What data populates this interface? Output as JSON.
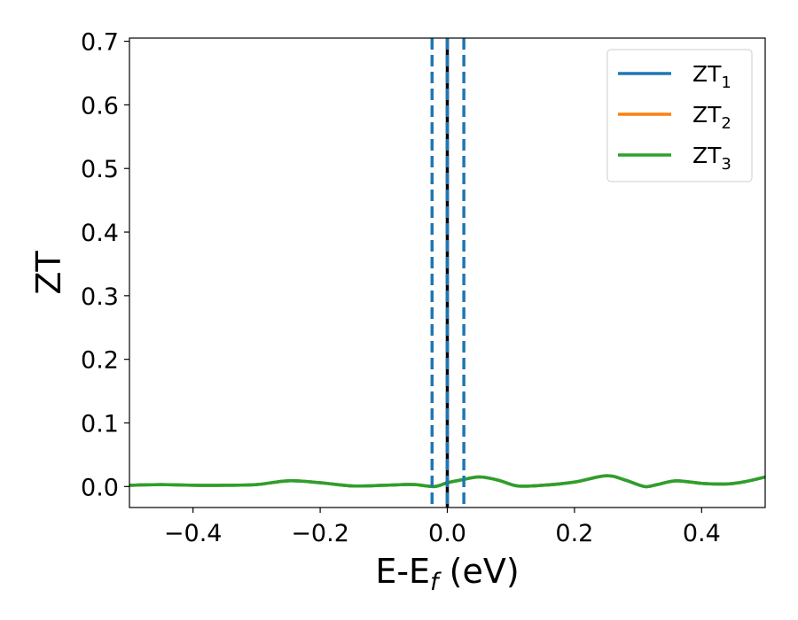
{
  "chart_data": {
    "type": "line",
    "xlabel": {
      "main": "E-E",
      "sub": "f",
      "unit": " (eV)"
    },
    "ylabel": "ZT",
    "xlim": [
      -0.5,
      0.5
    ],
    "ylim": [
      -0.033,
      0.705
    ],
    "xticks": [
      {
        "value": -0.4,
        "label": "−0.4"
      },
      {
        "value": -0.2,
        "label": "−0.2"
      },
      {
        "value": 0.0,
        "label": "0.0"
      },
      {
        "value": 0.2,
        "label": "0.2"
      },
      {
        "value": 0.4,
        "label": "0.4"
      }
    ],
    "yticks": [
      {
        "value": 0.0,
        "label": "0.0"
      },
      {
        "value": 0.1,
        "label": "0.1"
      },
      {
        "value": 0.2,
        "label": "0.2"
      },
      {
        "value": 0.3,
        "label": "0.3"
      },
      {
        "value": 0.4,
        "label": "0.4"
      },
      {
        "value": 0.5,
        "label": "0.5"
      },
      {
        "value": 0.6,
        "label": "0.6"
      },
      {
        "value": 0.7,
        "label": "0.7"
      }
    ],
    "x": [
      -0.5,
      -0.45,
      -0.4,
      -0.35,
      -0.3,
      -0.25,
      -0.2,
      -0.15,
      -0.1,
      -0.07,
      -0.05,
      -0.02,
      0.0,
      0.02,
      0.05,
      0.08,
      0.11,
      0.15,
      0.2,
      0.25,
      0.28,
      0.31,
      0.33,
      0.36,
      0.4,
      0.44,
      0.47,
      0.5
    ],
    "series": [
      {
        "name": "ZT",
        "sub": "1",
        "color": "#1f77b4",
        "values": [
          0.002,
          0.003,
          0.002,
          0.002,
          0.003,
          0.009,
          0.006,
          0.001,
          0.002,
          0.003,
          0.003,
          0.0,
          0.006,
          0.01,
          0.015,
          0.01,
          0.001,
          0.002,
          0.007,
          0.017,
          0.01,
          0.0,
          0.003,
          0.009,
          0.005,
          0.004,
          0.008,
          0.015
        ]
      },
      {
        "name": "ZT",
        "sub": "2",
        "color": "#ff7f0e",
        "values": [
          0.002,
          0.003,
          0.002,
          0.002,
          0.003,
          0.009,
          0.006,
          0.001,
          0.002,
          0.003,
          0.003,
          0.0,
          0.006,
          0.01,
          0.015,
          0.01,
          0.001,
          0.002,
          0.007,
          0.017,
          0.01,
          0.0,
          0.003,
          0.009,
          0.005,
          0.004,
          0.008,
          0.015
        ]
      },
      {
        "name": "ZT",
        "sub": "3",
        "color": "#2ca02c",
        "values": [
          0.002,
          0.003,
          0.002,
          0.002,
          0.003,
          0.009,
          0.006,
          0.001,
          0.002,
          0.003,
          0.003,
          0.0,
          0.006,
          0.01,
          0.015,
          0.01,
          0.001,
          0.002,
          0.007,
          0.017,
          0.01,
          0.0,
          0.003,
          0.009,
          0.005,
          0.004,
          0.008,
          0.015
        ]
      }
    ],
    "vlines": [
      {
        "x": -0.024,
        "color": "#1f77b4",
        "style": "dashed"
      },
      {
        "x": 0.026,
        "color": "#1f77b4",
        "style": "dashed"
      },
      {
        "x": 0.0,
        "color": "#000000",
        "style": "solid"
      },
      {
        "x": 0.0,
        "color": "#1f77b4",
        "style": "dashed"
      }
    ],
    "legend": {
      "position": "top-right"
    },
    "grid": false
  }
}
